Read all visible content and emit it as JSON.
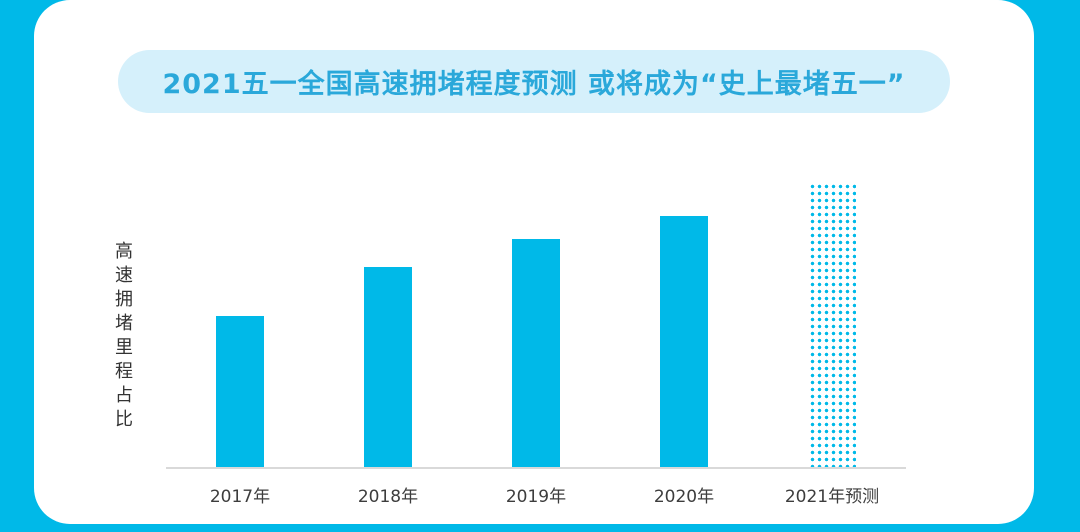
{
  "page": {
    "background_color": "#00b9e8",
    "card_color": "#ffffff"
  },
  "title": {
    "text": "2021五一全国高速拥堵程度预测 或将成为“史上最堵五一”",
    "bg_color": "#d5f0fb",
    "text_color": "#2aa8da"
  },
  "chart_data": {
    "type": "bar",
    "title": "2021五一全国高速拥堵程度预测 或将成为“史上最堵五一”",
    "categories": [
      "2017年",
      "2018年",
      "2019年",
      "2020年",
      "2021年预测"
    ],
    "values": [
      53,
      70,
      80,
      88,
      100
    ],
    "values_note": "relative heights (percent of tallest bar); no numeric y-axis shown",
    "xlabel": "",
    "ylabel": "高速拥堵里程占比",
    "ylim": [
      0,
      100
    ],
    "grid": false,
    "legend": false,
    "bar_color": "#00b9e8",
    "forecast_index": 4,
    "forecast_style": "dotted-outline",
    "axis_line_color": "#d9d9d9"
  }
}
